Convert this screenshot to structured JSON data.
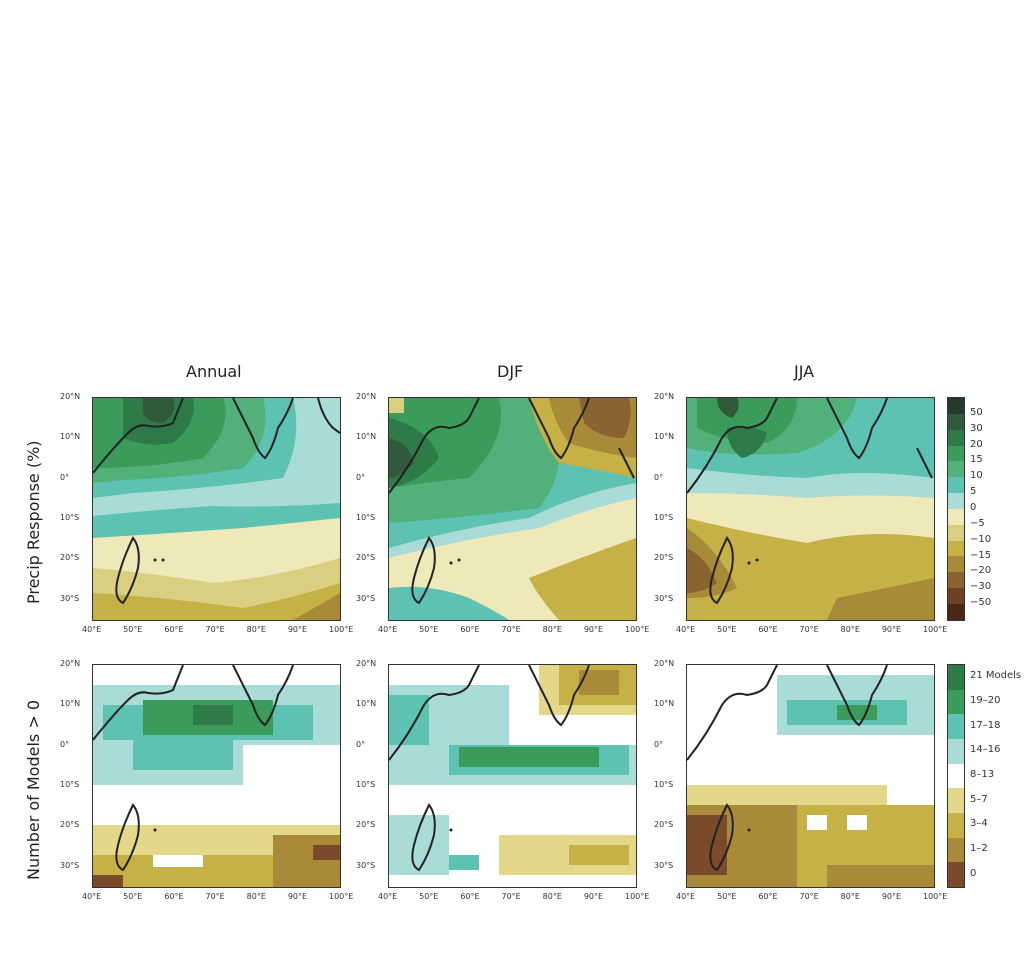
{
  "columns": [
    "Annual",
    "DJF",
    "JJA"
  ],
  "rows": [
    "Precip Response (%)",
    "Number of Models > 0"
  ],
  "lat_ticks": [
    "20°N",
    "10°N",
    "0°",
    "10°S",
    "20°S",
    "30°S"
  ],
  "lon_ticks": [
    "40°E",
    "50°E",
    "60°E",
    "70°E",
    "80°E",
    "90°E",
    "100°E"
  ],
  "colorbar_top": {
    "labels": [
      "50",
      "30",
      "20",
      "15",
      "10",
      "5",
      "0",
      "−5",
      "−10",
      "−15",
      "−20",
      "−30",
      "−50"
    ],
    "colors": [
      "#243a2e",
      "#2f5a3c",
      "#2e7a48",
      "#3a9b5a",
      "#52b07a",
      "#5ec2b2",
      "#a9dcd6",
      "#efe8b8",
      "#d8cf80",
      "#c5b145",
      "#a98a38",
      "#8a6430",
      "#6e4025",
      "#4a2818"
    ]
  },
  "colorbar_bottom": {
    "labels": [
      "21 Models",
      "19–20",
      "17–18",
      "14–16",
      "8–13",
      "5–7",
      "3–4",
      "1–2",
      "0"
    ],
    "colors": [
      "#2e7a48",
      "#3a9b5a",
      "#5ec2b2",
      "#a9dcd6",
      "#ffffff",
      "#e3d88a",
      "#c5b145",
      "#a98a38",
      "#7a4a2a"
    ]
  },
  "map_data": {
    "type": "gridded_fields",
    "region": {
      "lon": [
        40,
        100
      ],
      "lat": [
        -35,
        20
      ]
    },
    "panels": [
      {
        "row": "Precip Response (%)",
        "column": "Annual"
      },
      {
        "row": "Precip Response (%)",
        "column": "DJF"
      },
      {
        "row": "Precip Response (%)",
        "column": "JJA"
      },
      {
        "row": "Number of Models > 0",
        "column": "Annual"
      },
      {
        "row": "Number of Models > 0",
        "column": "DJF"
      },
      {
        "row": "Number of Models > 0",
        "column": "JJA"
      }
    ]
  }
}
